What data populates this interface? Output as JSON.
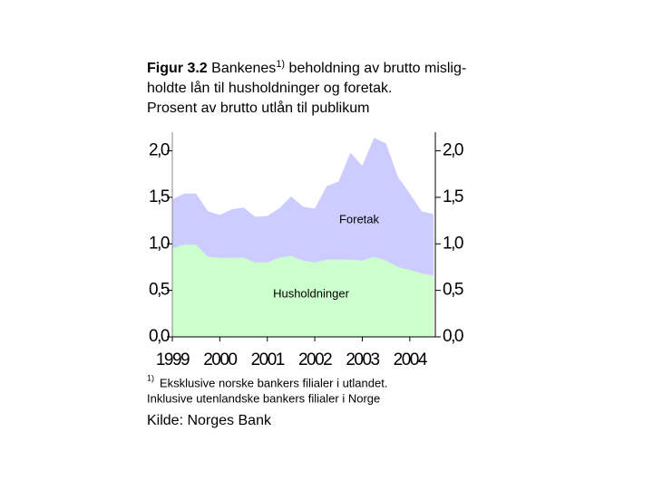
{
  "chart_data": {
    "type": "stacked-area",
    "title_label": "Figur 3.2",
    "title": "Bankenes",
    "title_note": "1)",
    "title_rest": "beholdning av brutto mislig-",
    "subtitle": [
      "holdte lån til husholdninger og  foretak.",
      "Prosent av brutto utlån til publikum"
    ],
    "x": [
      1999,
      1999.25,
      1999.5,
      1999.75,
      2000,
      2000.25,
      2000.5,
      2000.75,
      2001,
      2001.25,
      2001.5,
      2001.75,
      2002,
      2002.25,
      2002.5,
      2002.75,
      2003,
      2003.25,
      2003.5,
      2003.75,
      2004,
      2004.25,
      2004.5
    ],
    "series": [
      {
        "name": "Husholdninger",
        "color": "#ccffcc",
        "values": [
          0.95,
          0.99,
          0.99,
          0.86,
          0.85,
          0.85,
          0.85,
          0.8,
          0.8,
          0.85,
          0.87,
          0.82,
          0.8,
          0.83,
          0.83,
          0.83,
          0.82,
          0.86,
          0.82,
          0.75,
          0.72,
          0.68,
          0.66
        ]
      },
      {
        "name": "Foretak",
        "color": "#ccccff",
        "values": [
          0.53,
          0.55,
          0.55,
          0.49,
          0.46,
          0.52,
          0.54,
          0.49,
          0.5,
          0.53,
          0.64,
          0.58,
          0.58,
          0.79,
          0.84,
          1.15,
          1.02,
          1.28,
          1.26,
          0.97,
          0.82,
          0.67,
          0.66
        ]
      }
    ],
    "xlim": [
      1999,
      2004.5
    ],
    "xticks": [
      1999,
      2000,
      2001,
      2002,
      2003,
      2004
    ],
    "ylim": [
      0,
      2.2
    ],
    "yticks": [
      {
        "value": 0,
        "label": "0,0"
      },
      {
        "value": 0.5,
        "label": "0,5"
      },
      {
        "value": 1,
        "label": "1,0"
      },
      {
        "value": 1.5,
        "label": "1,5"
      },
      {
        "value": 2,
        "label": "2,0"
      }
    ],
    "y2lim": [
      0,
      2.2
    ],
    "y2ticks": [
      {
        "value": 0,
        "label": "0,0"
      },
      {
        "value": 0.5,
        "label": "0,5"
      },
      {
        "value": 1,
        "label": "1,0"
      },
      {
        "value": 1.5,
        "label": "1,5"
      },
      {
        "value": 2,
        "label": "2,0"
      }
    ],
    "footnote_mark": "1)",
    "footnote": [
      "Eksklusive norske bankers filialer i utlandet.",
      "Inklusive utenlandske bankers filialer i Norge"
    ],
    "source": "Kilde: Norges Bank"
  }
}
